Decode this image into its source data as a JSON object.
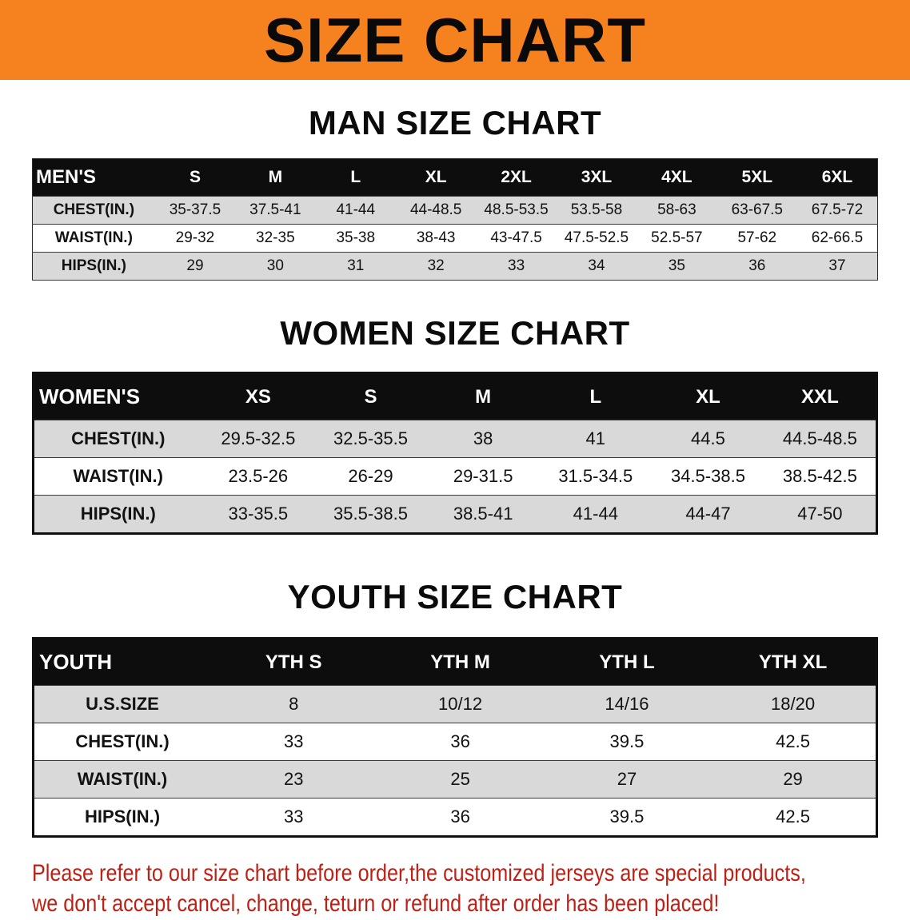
{
  "banner": {
    "title": "SIZE CHART"
  },
  "sections": {
    "men": {
      "heading": "MAN SIZE CHART",
      "table": {
        "header": [
          "MEN'S",
          "S",
          "M",
          "L",
          "XL",
          "2XL",
          "3XL",
          "4XL",
          "5XL",
          "6XL"
        ],
        "rows": [
          [
            "CHEST(IN.)",
            "35-37.5",
            "37.5-41",
            "41-44",
            "44-48.5",
            "48.5-53.5",
            "53.5-58",
            "58-63",
            "63-67.5",
            "67.5-72"
          ],
          [
            "WAIST(IN.)",
            "29-32",
            "32-35",
            "35-38",
            "38-43",
            "43-47.5",
            "47.5-52.5",
            "52.5-57",
            "57-62",
            "62-66.5"
          ],
          [
            "HIPS(IN.)",
            "29",
            "30",
            "31",
            "32",
            "33",
            "34",
            "35",
            "36",
            "37"
          ]
        ]
      }
    },
    "women": {
      "heading": "WOMEN SIZE CHART",
      "table": {
        "header": [
          "WOMEN'S",
          "XS",
          "S",
          "M",
          "L",
          "XL",
          "XXL"
        ],
        "rows": [
          [
            "CHEST(IN.)",
            "29.5-32.5",
            "32.5-35.5",
            "38",
            "41",
            "44.5",
            "44.5-48.5"
          ],
          [
            "WAIST(IN.)",
            "23.5-26",
            "26-29",
            "29-31.5",
            "31.5-34.5",
            "34.5-38.5",
            "38.5-42.5"
          ],
          [
            "HIPS(IN.)",
            "33-35.5",
            "35.5-38.5",
            "38.5-41",
            "41-44",
            "44-47",
            "47-50"
          ]
        ]
      }
    },
    "youth": {
      "heading": "YOUTH SIZE CHART",
      "table": {
        "header": [
          "YOUTH",
          "YTH S",
          "YTH M",
          "YTH L",
          "YTH XL"
        ],
        "rows": [
          [
            "U.S.SIZE",
            "8",
            "10/12",
            "14/16",
            "18/20"
          ],
          [
            "CHEST(IN.)",
            "33",
            "36",
            "39.5",
            "42.5"
          ],
          [
            "WAIST(IN.)",
            "23",
            "25",
            "27",
            "29"
          ],
          [
            "HIPS(IN.)",
            "33",
            "36",
            "39.5",
            "42.5"
          ]
        ]
      }
    }
  },
  "disclaimer": {
    "line1": "Please refer to our size chart before order,the customized jerseys are special products,",
    "line2": "we don't accept cancel, change, teturn or refund after order has been placed!"
  },
  "colors": {
    "banner-orange": "#f5821f",
    "header-black": "#0d0d0d",
    "row-gray": "#d9d9d9",
    "disclaimer-red": "#bf2015",
    "text-black": "#121212"
  }
}
